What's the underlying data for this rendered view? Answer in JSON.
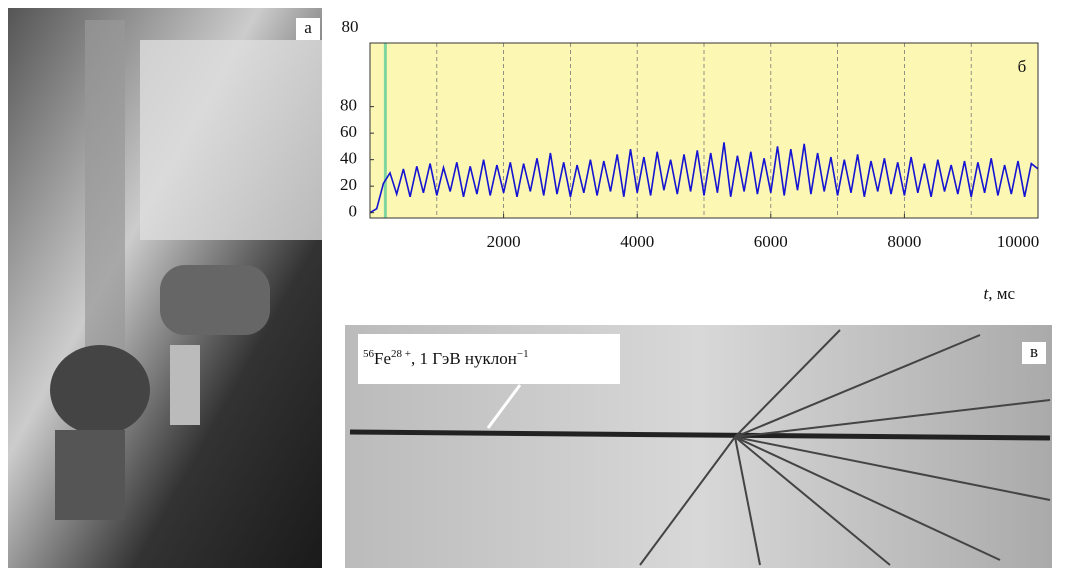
{
  "chart_data": {
    "type": "line",
    "ylabel": "80",
    "xlabel_var": "t",
    "xlabel_unit": ", мс",
    "x": [
      0,
      100,
      200,
      300,
      400,
      500,
      600,
      700,
      800,
      900,
      1000,
      1100,
      1200,
      1300,
      1400,
      1500,
      1600,
      1700,
      1800,
      1900,
      2000,
      2100,
      2200,
      2300,
      2400,
      2500,
      2600,
      2700,
      2800,
      2900,
      3000,
      3100,
      3200,
      3300,
      3400,
      3500,
      3600,
      3700,
      3800,
      3900,
      4000,
      4100,
      4200,
      4300,
      4400,
      4500,
      4600,
      4700,
      4800,
      4900,
      5000,
      5100,
      5200,
      5300,
      5400,
      5500,
      5600,
      5700,
      5800,
      5900,
      6000,
      6100,
      6200,
      6300,
      6400,
      6500,
      6600,
      6700,
      6800,
      6900,
      7000,
      7100,
      7200,
      7300,
      7400,
      7500,
      7600,
      7700,
      7800,
      7900,
      8000,
      8100,
      8200,
      8300,
      8400,
      8500,
      8600,
      8700,
      8800,
      8900,
      9000,
      9100,
      9200,
      9300,
      9400,
      9500,
      9600,
      9700,
      9800,
      9900,
      10000
    ],
    "series": [
      {
        "color": "#1414d2",
        "values": [
          0,
          3,
          22,
          30,
          14,
          33,
          12,
          35,
          15,
          37,
          13,
          34,
          16,
          38,
          12,
          35,
          14,
          40,
          13,
          36,
          15,
          38,
          12,
          37,
          16,
          41,
          13,
          45,
          14,
          38,
          12,
          36,
          15,
          40,
          13,
          39,
          16,
          44,
          12,
          48,
          15,
          42,
          13,
          46,
          17,
          40,
          14,
          44,
          16,
          47,
          13,
          45,
          15,
          53,
          12,
          43,
          16,
          46,
          14,
          41,
          15,
          50,
          13,
          48,
          17,
          52,
          14,
          45,
          16,
          42,
          13,
          40,
          15,
          44,
          12,
          39,
          16,
          41,
          14,
          38,
          13,
          42,
          15,
          37,
          12,
          40,
          16,
          36,
          14,
          39,
          12,
          38,
          15,
          41,
          13,
          36,
          14,
          39,
          12,
          37,
          33
        ]
      }
    ],
    "marker_x": 230,
    "marker_color": "#7fd6a0",
    "background": "#fcf8b4",
    "xlim": [
      0,
      10000
    ],
    "ylim": [
      -4,
      128
    ],
    "xticks": [
      2000,
      4000,
      6000,
      8000,
      10000
    ],
    "yticks": [
      0,
      20,
      40,
      60,
      80
    ],
    "xgrid": [
      1000,
      2000,
      3000,
      4000,
      5000,
      6000,
      7000,
      8000,
      9000
    ]
  },
  "panels": {
    "a": "а",
    "b": "б",
    "c": "в"
  },
  "annotation": {
    "mass": "56",
    "element": "Fe",
    "charge": "28 +",
    "text": ", 1 ГэВ нуклон",
    "power": "−1"
  }
}
